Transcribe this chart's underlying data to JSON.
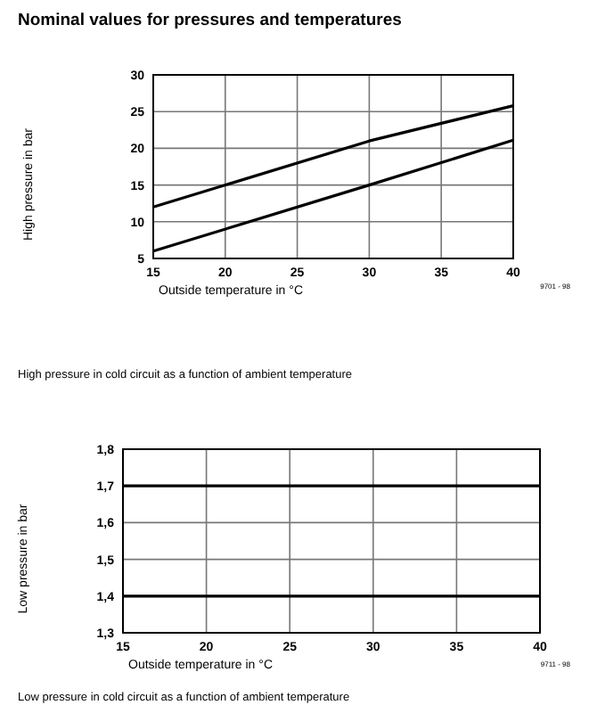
{
  "chart_data": [
    {
      "type": "line",
      "title": "Nominal values for pressures and temperatures",
      "xlabel": "Outside temperature in °C",
      "ylabel": "High pressure in bar",
      "xlim": [
        15,
        40
      ],
      "xticks": [
        15,
        20,
        25,
        30,
        35,
        40
      ],
      "ylim": [
        5,
        30
      ],
      "yticks": [
        5,
        10,
        15,
        20,
        25,
        30
      ],
      "grid": true,
      "marker": "none",
      "line_style": "solid",
      "series": [
        {
          "color": "#000000",
          "x": [
            15,
            30,
            40
          ],
          "values": [
            12,
            21,
            25.8
          ]
        },
        {
          "color": "#000000",
          "x": [
            15,
            30,
            40
          ],
          "values": [
            6,
            15,
            21.1
          ]
        }
      ],
      "annotations": [
        "9701 - 98",
        "High pressure in cold circuit as a function of ambient temperature"
      ]
    },
    {
      "type": "line",
      "xlabel": "Outside temperature in °C",
      "ylabel": "Low pressure in bar",
      "xlim": [
        15,
        40
      ],
      "xticks": [
        15,
        20,
        25,
        30,
        35,
        40
      ],
      "ylim": [
        1.3,
        1.8
      ],
      "yticks": [
        {
          "value": 1.3,
          "label": "1,3"
        },
        {
          "value": 1.4,
          "label": "1,4"
        },
        {
          "value": 1.5,
          "label": "1,5"
        },
        {
          "value": 1.6,
          "label": "1,6"
        },
        {
          "value": 1.7,
          "label": "1,7"
        },
        {
          "value": 1.8,
          "label": "1,8"
        }
      ],
      "grid": true,
      "marker": "none",
      "line_style": "solid",
      "series": [
        {
          "color": "#000000",
          "x": [
            15,
            40
          ],
          "values": [
            1.7,
            1.7
          ]
        },
        {
          "color": "#000000",
          "x": [
            15,
            40
          ],
          "values": [
            1.4,
            1.4
          ]
        }
      ],
      "annotations": [
        "9711 - 98",
        "Low pressure in cold circuit as a function of ambient temperature"
      ]
    }
  ]
}
